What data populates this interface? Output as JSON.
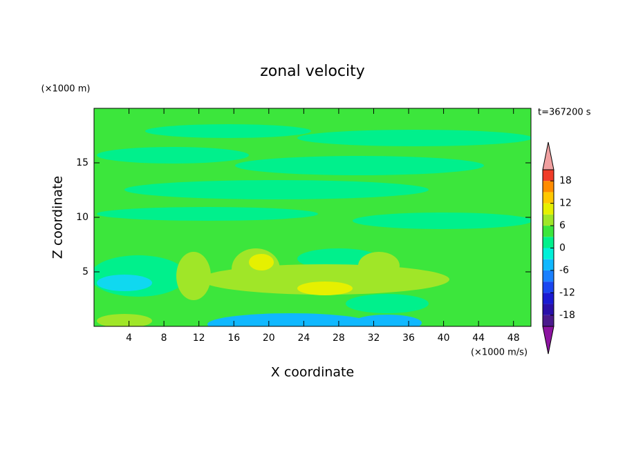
{
  "chart_data": {
    "type": "contour",
    "title": "zonal velocity",
    "xlabel": "X coordinate",
    "ylabel": "Z coordinate",
    "x_unit": "(×1000 m/s)",
    "y_unit": "(×1000 m)",
    "time_label": "t=367200 s",
    "xlim": [
      0,
      50
    ],
    "xticks": [
      4,
      8,
      12,
      16,
      20,
      24,
      28,
      32,
      36,
      40,
      44,
      48
    ],
    "ylim": [
      0,
      20
    ],
    "yticks": [
      5,
      10,
      15
    ],
    "levels": [
      -21,
      -18,
      -15,
      -12,
      -9,
      -6,
      -3,
      0,
      3,
      6,
      9,
      12,
      15,
      18,
      21
    ],
    "level_colors": [
      "#4b1a8c",
      "#2a10a8",
      "#1a1ad2",
      "#1a46f0",
      "#1a80ff",
      "#10b8ff",
      "#00f0d8",
      "#00f08c",
      "#3ce63c",
      "#a0e628",
      "#e6f000",
      "#ffc800",
      "#ff8c00",
      "#f03c28"
    ],
    "extend_colors": [
      "#8c14a0",
      "#f0a0a0"
    ],
    "colorbar_ticks": [
      -18,
      -12,
      -6,
      0,
      6,
      12,
      18
    ]
  }
}
